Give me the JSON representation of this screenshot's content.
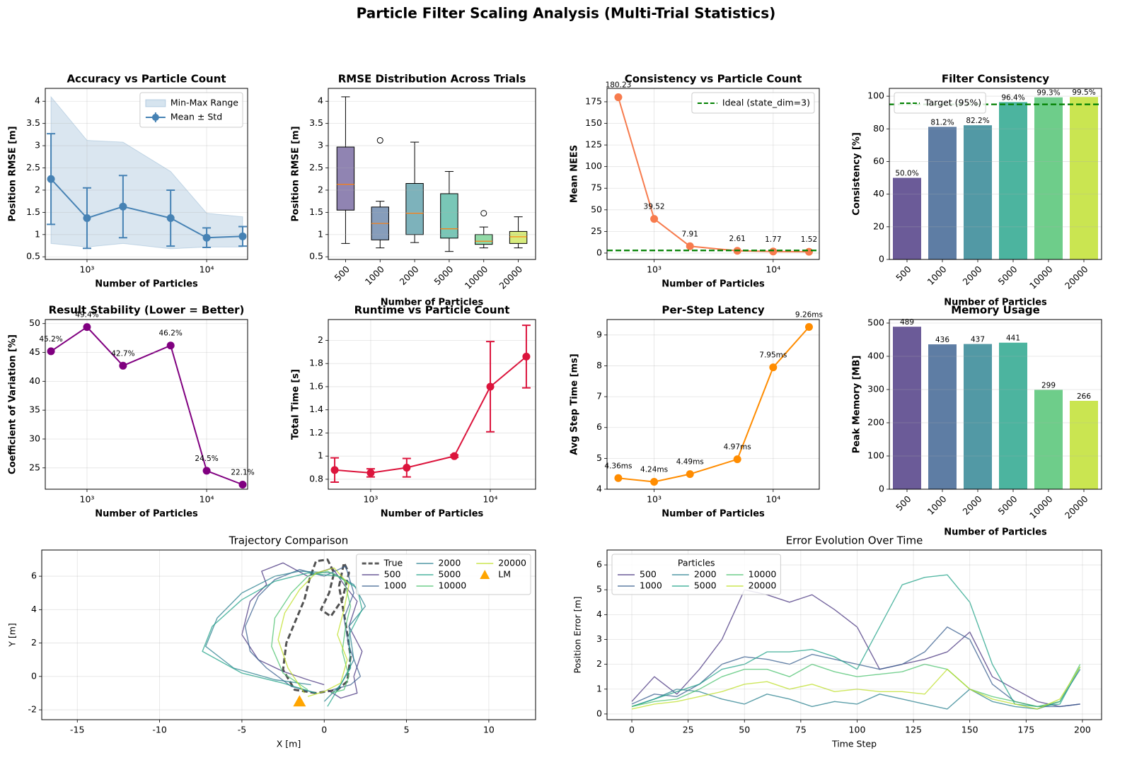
{
  "title": "Particle Filter Scaling Analysis (Multi-Trial Statistics)",
  "chart_data": [
    {
      "type": "errorbar",
      "title": "Accuracy vs Particle Count",
      "xlabel": "Number of Particles",
      "ylabel": "Position RMSE [m]",
      "x": [
        500,
        1000,
        2000,
        5000,
        10000,
        20000
      ],
      "xscale": "log",
      "xlim": [
        448,
        22000
      ],
      "xticks": [
        {
          "value": 1000,
          "label": "10³"
        },
        {
          "value": 10000,
          "label": "10⁴"
        }
      ],
      "ylim": [
        0.44,
        4.29
      ],
      "yticks": [
        0.5,
        1.0,
        1.5,
        2.0,
        2.5,
        3.0,
        3.5,
        4.0
      ],
      "grid": true,
      "legend": "upper right",
      "band": {
        "name": "Min-Max Range",
        "color": "#4682b4",
        "low": [
          0.8,
          0.72,
          0.8,
          0.68,
          0.72,
          0.72
        ],
        "high": [
          4.1,
          3.12,
          3.08,
          2.42,
          1.48,
          1.4
        ]
      },
      "series": [
        {
          "name": "Mean ± Std",
          "color": "#4682b4",
          "marker": "o",
          "values": [
            2.25,
            1.37,
            1.63,
            1.37,
            0.93,
            0.96
          ],
          "errors": [
            1.02,
            0.68,
            0.7,
            0.63,
            0.22,
            0.22
          ]
        }
      ]
    },
    {
      "type": "box",
      "title": "RMSE Distribution Across Trials",
      "xlabel": "Number of Particles",
      "ylabel": "Position RMSE [m]",
      "categories": [
        "500",
        "1000",
        "2000",
        "5000",
        "10000",
        "20000"
      ],
      "xtick_rotation": 45,
      "colors": [
        "#46327e",
        "#365c8d",
        "#277f8e",
        "#1fa187",
        "#4ac16d",
        "#bddf26"
      ],
      "ylim": [
        0.44,
        4.29
      ],
      "yticks": [
        0.5,
        1.0,
        1.5,
        2.0,
        2.5,
        3.0,
        3.5,
        4.0
      ],
      "grid": true,
      "boxes": {
        "whislo": [
          0.8,
          0.7,
          0.82,
          0.62,
          0.7,
          0.7
        ],
        "q1": [
          1.55,
          0.88,
          1.0,
          0.92,
          0.78,
          0.8
        ],
        "median": [
          2.13,
          1.25,
          1.48,
          1.13,
          0.85,
          0.95
        ],
        "q3": [
          2.97,
          1.62,
          2.15,
          1.92,
          1.0,
          1.07
        ],
        "whishi": [
          4.1,
          1.75,
          3.08,
          2.42,
          1.17,
          1.4
        ],
        "fliers": [
          [],
          [
            3.12
          ],
          [],
          [],
          [
            1.48
          ],
          []
        ]
      }
    },
    {
      "type": "line",
      "title": "Consistency vs Particle Count",
      "xlabel": "Number of Particles",
      "ylabel": "Mean NEES",
      "x": [
        500,
        1000,
        2000,
        5000,
        10000,
        20000
      ],
      "xscale": "log",
      "xlim": [
        402,
        24400
      ],
      "xticks": [
        {
          "value": 1000,
          "label": "10³"
        },
        {
          "value": 10000,
          "label": "10⁴"
        }
      ],
      "ylim": [
        -7.4,
        190.5
      ],
      "yticks": [
        0,
        25,
        50,
        75,
        100,
        125,
        150,
        175
      ],
      "grid": true,
      "legend": "upper right",
      "hline": {
        "name": "Ideal (state_dim=3)",
        "value": 3,
        "color": "#008000"
      },
      "series": [
        {
          "color": "#f77b4d",
          "marker": "o",
          "data_labels": true,
          "values": [
            180.23,
            39.52,
            7.91,
            2.61,
            1.77,
            1.52
          ]
        }
      ]
    },
    {
      "type": "bar",
      "title": "Filter Consistency",
      "xlabel": "Number of Particles",
      "ylabel": "Consistency [%]",
      "categories": [
        "500",
        "1000",
        "2000",
        "5000",
        "10000",
        "20000"
      ],
      "xtick_rotation": 45,
      "colors": [
        "#46327e",
        "#365c8d",
        "#277f8e",
        "#1fa187",
        "#4ac16d",
        "#bddf26"
      ],
      "values": [
        50.0,
        81.2,
        82.2,
        96.4,
        99.3,
        99.5
      ],
      "value_labels": [
        "50.0%",
        "81.2%",
        "82.2%",
        "96.4%",
        "99.3%",
        "99.5%"
      ],
      "ylim": [
        0,
        104.8
      ],
      "yticks": [
        0,
        20,
        40,
        60,
        80,
        100
      ],
      "grid": true,
      "legend": "upper left",
      "hline": {
        "name": "Target (95%)",
        "value": 95,
        "color": "#008000"
      }
    },
    {
      "type": "line",
      "title": "Result Stability (Lower = Better)",
      "xlabel": "Number of Particles",
      "ylabel": "Coefficient of Variation [%]",
      "x": [
        500,
        1000,
        2000,
        5000,
        10000,
        20000
      ],
      "xscale": "log",
      "xlim": [
        448,
        22000
      ],
      "xticks": [
        {
          "value": 1000,
          "label": "10³"
        },
        {
          "value": 10000,
          "label": "10⁴"
        }
      ],
      "ylim": [
        21.3,
        50.7
      ],
      "yticks": [
        25,
        30,
        35,
        40,
        45,
        50
      ],
      "grid": true,
      "series": [
        {
          "color": "#800080",
          "marker": "o",
          "values": [
            45.2,
            49.4,
            42.7,
            46.2,
            24.5,
            22.1
          ],
          "value_labels": [
            "45.2%",
            "49.4%",
            "42.7%",
            "46.2%",
            "24.5%",
            "22.1%"
          ]
        }
      ]
    },
    {
      "type": "errorbar",
      "title": "Runtime vs Particle Count",
      "xlabel": "Number of Particles",
      "ylabel": "Total Time [s]",
      "x": [
        500,
        1000,
        2000,
        5000,
        10000,
        20000
      ],
      "xscale": "log",
      "xlim": [
        442,
        23900
      ],
      "xticks": [
        {
          "value": 1000,
          "label": "10³"
        },
        {
          "value": 10000,
          "label": "10⁴"
        }
      ],
      "ylim": [
        0.714,
        2.18
      ],
      "yticks": [
        0.8,
        1.0,
        1.2,
        1.4,
        1.6,
        1.8,
        2.0
      ],
      "grid": true,
      "series": [
        {
          "color": "#dc143c",
          "marker": "o",
          "values": [
            0.88,
            0.855,
            0.9,
            1.0,
            1.6,
            1.86
          ],
          "errors": [
            0.105,
            0.035,
            0.08,
            0.01,
            0.39,
            0.27
          ]
        }
      ]
    },
    {
      "type": "line",
      "title": "Per-Step Latency",
      "xlabel": "Number of Particles",
      "ylabel": "Avg Step Time [ms]",
      "x": [
        500,
        1000,
        2000,
        5000,
        10000,
        20000
      ],
      "xscale": "log",
      "xlim": [
        402,
        24400
      ],
      "xticks": [
        {
          "value": 1000,
          "label": "10³"
        },
        {
          "value": 10000,
          "label": "10⁴"
        }
      ],
      "ylim": [
        4.0,
        9.5
      ],
      "yticks": [
        4,
        5,
        6,
        7,
        8,
        9
      ],
      "grid": true,
      "series": [
        {
          "color": "#ff8c00",
          "marker": "o",
          "values": [
            4.36,
            4.24,
            4.49,
            4.97,
            7.95,
            9.26
          ],
          "value_labels": [
            "4.36ms",
            "4.24ms",
            "4.49ms",
            "4.97ms",
            "7.95ms",
            "9.26ms"
          ]
        }
      ]
    },
    {
      "type": "bar",
      "title": "Memory Usage",
      "xlabel": "Number of Particles",
      "ylabel": "Peak Memory [MB]",
      "categories": [
        "500",
        "1000",
        "2000",
        "5000",
        "10000",
        "20000"
      ],
      "xtick_rotation": 45,
      "colors": [
        "#46327e",
        "#365c8d",
        "#277f8e",
        "#1fa187",
        "#4ac16d",
        "#bddf26"
      ],
      "values": [
        489,
        436,
        437,
        441,
        299,
        266
      ],
      "data_labels": true,
      "ylim": [
        0,
        510.6
      ],
      "yticks": [
        0,
        100,
        200,
        300,
        400,
        500
      ],
      "grid": true
    },
    {
      "type": "line",
      "title": "Trajectory Comparison",
      "xlabel": "X [m]",
      "ylabel": "Y [m]",
      "xlim": [
        -17.16,
        12.84
      ],
      "xticks": [
        -15,
        -10,
        -5,
        0,
        5,
        10
      ],
      "ylim": [
        -2.59,
        7.57
      ],
      "yticks": [
        -2,
        0,
        2,
        4,
        6
      ],
      "grid": true,
      "legend": "upper right",
      "legend_ncol": 3,
      "series": [
        {
          "name": "True",
          "color": "#333333",
          "linestyle": "dashed",
          "x": [
            -0.5,
            -1.8,
            -2.5,
            -2.3,
            -1.8,
            -1.2,
            -0.9,
            -0.5,
            0.2,
            0.6,
            0.3,
            -0.2,
            0.4,
            1.1,
            1.5,
            1.2,
            0.9,
            1.3,
            1.6,
            1.4,
            0.8,
            -0.5
          ],
          "values": [
            -1,
            -0.8,
            0.4,
            2.0,
            3.2,
            4.6,
            5.8,
            6.9,
            7.0,
            6.2,
            5.0,
            4.0,
            3.6,
            4.6,
            6.2,
            6.8,
            5.4,
            3.2,
            1.2,
            -0.3,
            -0.8,
            -1
          ]
        },
        {
          "name": "500",
          "color": "#46327e",
          "x": [
            0,
            -1,
            -2.5,
            -4,
            -5,
            -4.5,
            -3.5,
            -3.8,
            -2.5,
            -1,
            0.5,
            1.2,
            2.0,
            1.5,
            2.3,
            1.8,
            2.0,
            1.0,
            0.2
          ],
          "values": [
            -0.5,
            -0.2,
            0.3,
            1.0,
            2.5,
            4.5,
            5.5,
            6.3,
            6.8,
            6.0,
            6.5,
            5.5,
            4.5,
            3.0,
            1.5,
            0.0,
            -1.0,
            -1.3,
            -0.8
          ]
        },
        {
          "name": "1000",
          "color": "#365c8d",
          "x": [
            -0.5,
            -2,
            -3.5,
            -4.5,
            -4.8,
            -4,
            -3,
            -1.5,
            0,
            1.3,
            1.8,
            1.2,
            1.5,
            2.2,
            1.6,
            0.5
          ],
          "values": [
            -1,
            -0.6,
            0.5,
            1.5,
            3,
            4.8,
            5.8,
            6.4,
            6.0,
            6.6,
            5.0,
            3.5,
            1.8,
            0.0,
            -0.5,
            -0.8
          ]
        },
        {
          "name": "2000",
          "color": "#277f8e",
          "x": [
            -0.8,
            -3,
            -5.5,
            -7.2,
            -6.5,
            -5,
            -3,
            -1.5,
            0.5,
            1.8,
            2.5,
            1.5,
            1.8,
            1.0,
            0.0
          ],
          "values": [
            -0.5,
            -0.2,
            0.5,
            1.8,
            3.5,
            5.0,
            6.0,
            6.3,
            6.2,
            5.5,
            4.2,
            3.0,
            1.0,
            -0.5,
            -1.5
          ]
        },
        {
          "name": "5000",
          "color": "#1fa187",
          "x": [
            -0.5,
            -2.5,
            -5,
            -7.4,
            -6.8,
            -5,
            -3,
            -1,
            0.8,
            2.0,
            2.3,
            1.5,
            1.6,
            0.8,
            0.2
          ],
          "values": [
            -1,
            -0.4,
            0.2,
            1.5,
            3.0,
            4.6,
            5.7,
            6.2,
            6.0,
            5.3,
            4.0,
            2.5,
            0.5,
            -0.8,
            -1.8
          ]
        },
        {
          "name": "10000",
          "color": "#4ac16d",
          "x": [
            -1,
            -2.5,
            -3.2,
            -3,
            -2,
            -1,
            0.2,
            1.2,
            1.6,
            1.3,
            1.1,
            1.5,
            1.2,
            0.4
          ],
          "values": [
            -0.8,
            0.2,
            1.8,
            3.5,
            5.0,
            6.0,
            6.3,
            5.8,
            4.2,
            3.0,
            1.5,
            0.0,
            -0.8,
            -1.0
          ]
        },
        {
          "name": "20000",
          "color": "#bddf26",
          "x": [
            -1.2,
            -2.2,
            -2.8,
            -2.4,
            -1.5,
            -0.5,
            0.6,
            1.5,
            1.2,
            0.8,
            1.4,
            1.0,
            0.0,
            -1.0
          ],
          "values": [
            -1,
            0.5,
            2.2,
            3.8,
            5.2,
            6.2,
            6.5,
            5.5,
            4.0,
            2.5,
            1.0,
            -0.4,
            -0.9,
            -1.2
          ]
        },
        {
          "name": "LM",
          "color": "#ffa500",
          "marker": "^",
          "linestyle": "none",
          "x": [
            -1.5
          ],
          "values": [
            -1.5
          ]
        }
      ]
    },
    {
      "type": "line",
      "title": "Error Evolution Over Time",
      "xlabel": "Time Step",
      "ylabel": "Position Error [m]",
      "x": [
        0,
        10,
        20,
        30,
        40,
        50,
        60,
        70,
        80,
        90,
        100,
        110,
        120,
        130,
        140,
        150,
        160,
        170,
        180,
        190,
        199
      ],
      "xlim": [
        -11,
        208.5
      ],
      "xticks": [
        0,
        25,
        50,
        75,
        100,
        125,
        150,
        175,
        200
      ],
      "ylim": [
        -0.23,
        6.6
      ],
      "yticks": [
        0,
        1,
        2,
        3,
        4,
        5,
        6
      ],
      "grid": true,
      "legend": "upper left",
      "legend_ncol": 3,
      "legend_title": "Particles",
      "series": [
        {
          "name": "500",
          "color": "#46327e",
          "values": [
            0.5,
            1.5,
            0.8,
            1.8,
            3.0,
            5.0,
            4.8,
            4.5,
            4.8,
            4.2,
            3.5,
            1.8,
            2.0,
            2.2,
            2.5,
            3.3,
            1.5,
            1.0,
            0.5,
            0.3,
            0.4
          ]
        },
        {
          "name": "1000",
          "color": "#365c8d",
          "values": [
            0.4,
            0.8,
            0.7,
            1.2,
            2.0,
            2.3,
            2.2,
            2.0,
            2.4,
            2.2,
            2.0,
            1.8,
            2.0,
            2.5,
            3.5,
            3.0,
            1.2,
            0.5,
            0.3,
            0.3,
            0.4
          ]
        },
        {
          "name": "2000",
          "color": "#277f8e",
          "values": [
            0.3,
            0.6,
            1.0,
            0.9,
            0.6,
            0.4,
            0.8,
            0.6,
            0.3,
            0.5,
            0.4,
            0.8,
            0.6,
            0.4,
            0.2,
            1.0,
            0.5,
            0.3,
            0.2,
            0.5,
            1.8
          ]
        },
        {
          "name": "5000",
          "color": "#1fa187",
          "values": [
            0.3,
            0.6,
            0.9,
            1.2,
            1.8,
            2.0,
            2.5,
            2.5,
            2.6,
            2.3,
            1.8,
            3.5,
            5.2,
            5.5,
            5.6,
            4.5,
            2.0,
            0.4,
            0.3,
            0.4,
            1.9
          ]
        },
        {
          "name": "10000",
          "color": "#4ac16d",
          "values": [
            0.3,
            0.5,
            0.6,
            1.0,
            1.5,
            1.8,
            1.8,
            1.5,
            2.0,
            1.7,
            1.5,
            1.6,
            1.7,
            2.0,
            1.8,
            1.0,
            0.7,
            0.5,
            0.3,
            0.5,
            2.0
          ]
        },
        {
          "name": "20000",
          "color": "#bddf26",
          "values": [
            0.2,
            0.4,
            0.5,
            0.7,
            0.9,
            1.2,
            1.3,
            1.0,
            1.2,
            0.9,
            1.0,
            0.9,
            0.9,
            0.8,
            1.8,
            1.0,
            0.6,
            0.4,
            0.2,
            0.6,
            1.9
          ]
        }
      ]
    }
  ]
}
